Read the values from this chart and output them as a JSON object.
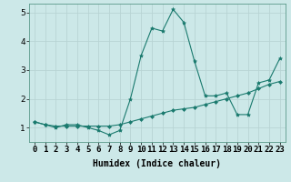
{
  "xlabel": "Humidex (Indice chaleur)",
  "x_values": [
    0,
    1,
    2,
    3,
    4,
    5,
    6,
    7,
    8,
    9,
    10,
    11,
    12,
    13,
    14,
    15,
    16,
    17,
    18,
    19,
    20,
    21,
    22,
    23
  ],
  "line1_y": [
    1.2,
    1.1,
    1.0,
    1.1,
    1.1,
    1.0,
    0.9,
    0.75,
    0.9,
    2.0,
    3.5,
    4.45,
    4.35,
    5.1,
    4.65,
    3.3,
    2.1,
    2.1,
    2.2,
    1.45,
    1.45,
    2.55,
    2.65,
    3.4
  ],
  "line2_y": [
    1.2,
    1.1,
    1.05,
    1.05,
    1.05,
    1.05,
    1.05,
    1.05,
    1.1,
    1.2,
    1.3,
    1.4,
    1.5,
    1.6,
    1.65,
    1.7,
    1.8,
    1.9,
    2.0,
    2.1,
    2.2,
    2.35,
    2.5,
    2.6
  ],
  "line_color": "#1a7a6e",
  "bg_color": "#cce8e8",
  "grid_color": "#b8d4d4",
  "ylim": [
    0.5,
    5.3
  ],
  "yticks": [
    1,
    2,
    3,
    4,
    5
  ],
  "xlim": [
    -0.5,
    23.5
  ],
  "xtick_labels": [
    "0",
    "1",
    "2",
    "3",
    "4",
    "5",
    "6",
    "7",
    "8",
    "9",
    "10",
    "11",
    "12",
    "13",
    "14",
    "15",
    "16",
    "17",
    "18",
    "19",
    "20",
    "21",
    "22",
    "23"
  ],
  "xlabel_fontsize": 7,
  "tick_fontsize": 6.5
}
